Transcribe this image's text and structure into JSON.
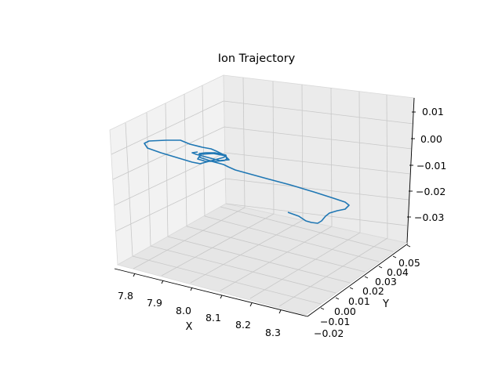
{
  "chart_data": {
    "type": "line",
    "projection": "3d",
    "title": "Ion Trajectory",
    "xlabel": "X",
    "ylabel": "Y",
    "zlabel": "",
    "x_ticks": [
      "7.8",
      "7.9",
      "8.0",
      "8.1",
      "8.2",
      "8.3"
    ],
    "y_ticks": [
      "−0.02",
      "−0.01",
      "0.00",
      "0.01",
      "0.02",
      "0.03",
      "0.04",
      "0.05"
    ],
    "z_ticks": [
      "0.01",
      "0.00",
      "−0.01",
      "−0.02",
      "−0.03"
    ],
    "grid": true,
    "legend": "none",
    "series": [
      {
        "color": "#1f77b4",
        "note_points_are_projected_screen_path": true,
        "path": [
          [
            367,
            271
          ],
          [
            381,
            276
          ],
          [
            390,
            282
          ],
          [
            397,
            284
          ],
          [
            405,
            285
          ],
          [
            410,
            282
          ],
          [
            415,
            276
          ],
          [
            420,
            272
          ],
          [
            430,
            269
          ],
          [
            440,
            267
          ],
          [
            445,
            262
          ],
          [
            440,
            258
          ],
          [
            425,
            253
          ],
          [
            400,
            245
          ],
          [
            370,
            236
          ],
          [
            340,
            228
          ],
          [
            300,
            217
          ],
          [
            291,
            213
          ],
          [
            285,
            210
          ],
          [
            270,
            206
          ],
          [
            255,
            201
          ],
          [
            254,
            196
          ],
          [
            262,
            195
          ],
          [
            274,
            195
          ],
          [
            288,
            198
          ],
          [
            289,
            203
          ],
          [
            286,
            205
          ],
          [
            275,
            206
          ],
          [
            262,
            206
          ],
          [
            252,
            203
          ],
          [
            256,
            197
          ],
          [
            272,
            196
          ],
          [
            288,
            199
          ],
          [
            285,
            201
          ],
          [
            270,
            205
          ],
          [
            255,
            209
          ],
          [
            245,
            207
          ],
          [
            225,
            201
          ],
          [
            205,
            195
          ],
          [
            188,
            189
          ],
          [
            184,
            183
          ],
          [
            190,
            180
          ],
          [
            212,
            179
          ],
          [
            230,
            179
          ],
          [
            242,
            184
          ],
          [
            258,
            188
          ],
          [
            269,
            190
          ],
          [
            276,
            193
          ],
          [
            286,
            198
          ],
          [
            292,
            204
          ],
          [
            280,
            205
          ],
          [
            265,
            201
          ],
          [
            250,
            197
          ],
          [
            245,
            195
          ],
          [
            252,
            194
          ]
        ]
      }
    ]
  }
}
